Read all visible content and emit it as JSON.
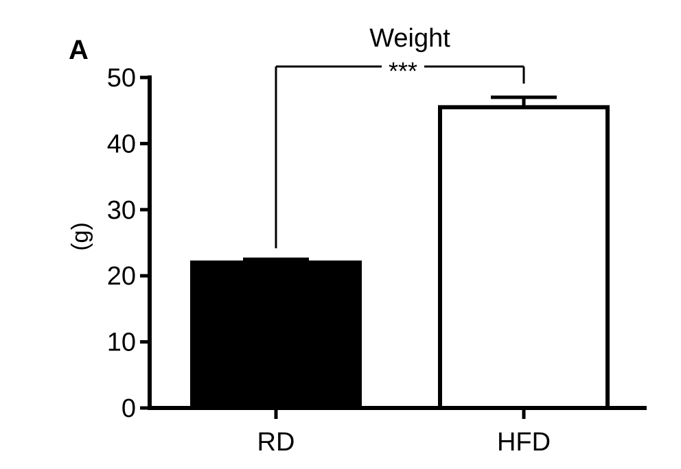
{
  "panel_label": "A",
  "chart_data": {
    "type": "bar",
    "title": "Weight",
    "xlabel": "",
    "ylabel": "(g)",
    "ylim": [
      0,
      50
    ],
    "yticks": [
      0,
      10,
      20,
      30,
      40,
      50
    ],
    "categories": [
      "RD",
      "HFD"
    ],
    "values": [
      22,
      45.5
    ],
    "errors": [
      0.5,
      1.5
    ],
    "bar_fill": [
      "#000000",
      "#ffffff"
    ],
    "bar_stroke": "#000000",
    "significance": {
      "between": [
        "RD",
        "HFD"
      ],
      "label": "***"
    },
    "grid": false,
    "legend": "none"
  }
}
